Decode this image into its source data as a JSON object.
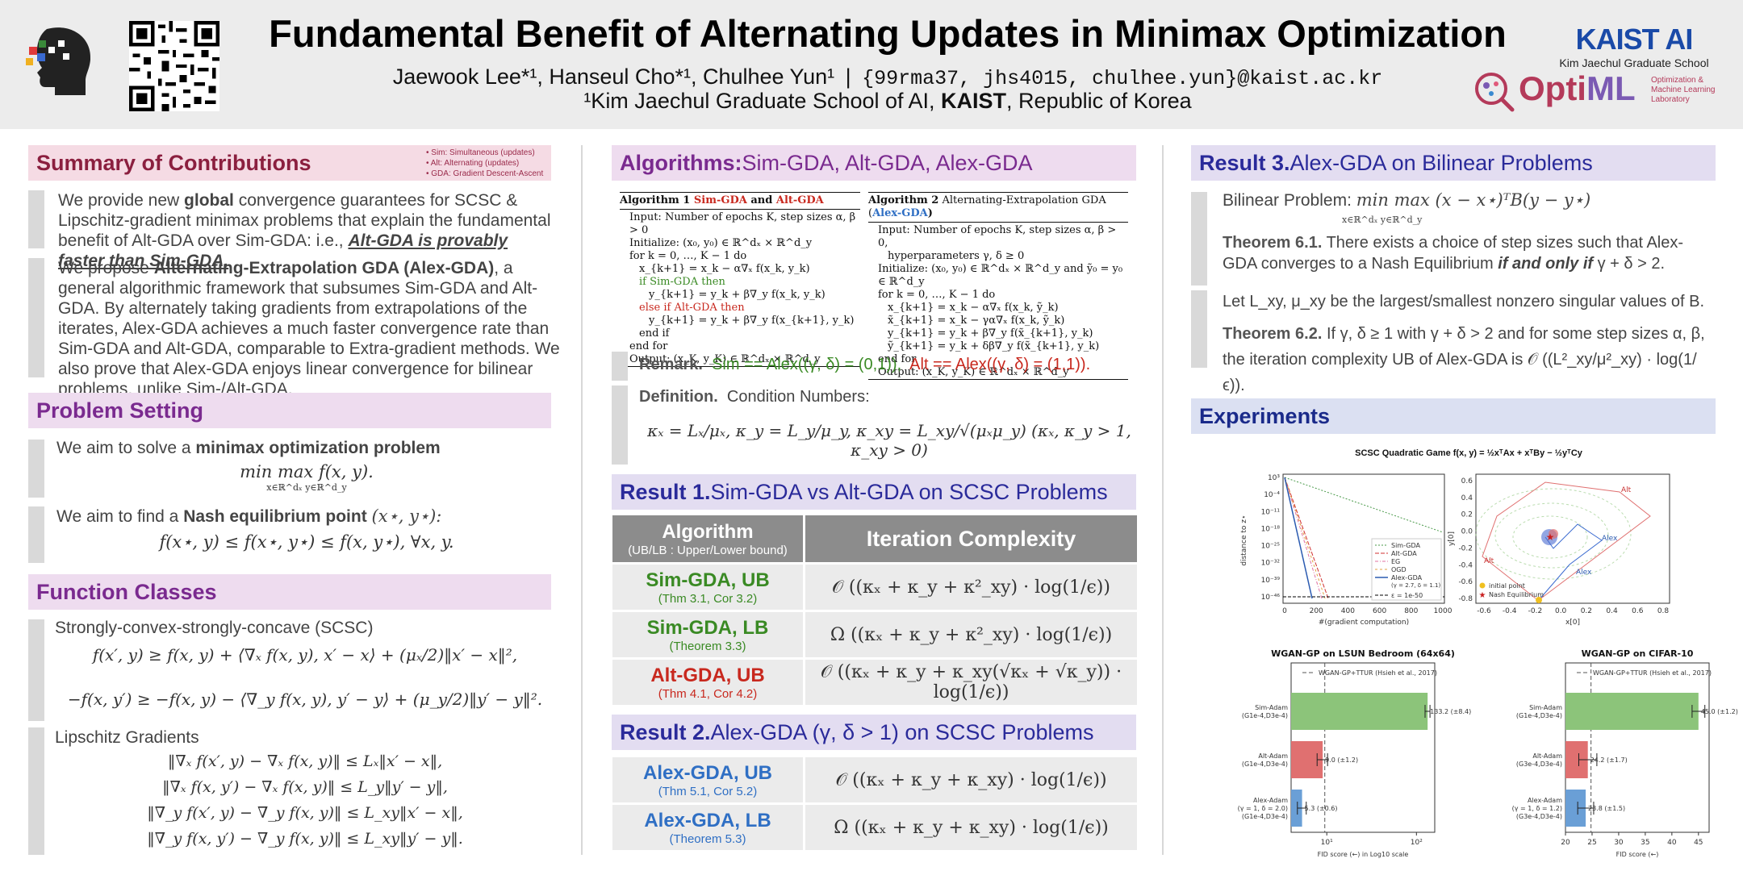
{
  "header": {
    "title": "Fundamental Benefit of Alternating Updates in Minimax Optimization",
    "authors": "Jaewook Lee*¹, Hanseul Cho*¹, Chulhee Yun¹",
    "sep": "|",
    "emails": "{99rma37, jhs4015, chulhee.yun}@kaist.ac.kr",
    "affil_pre": "¹Kim Jaechul Graduate School of AI, ",
    "affil_bold": "KAIST",
    "affil_post": ", Republic of Korea",
    "kaist_logo": "KAIST AI",
    "kaist_sub": "Kim Jaechul Graduate School",
    "optiml_a": "Opti",
    "optiml_b": "ML",
    "optiml_sub1": "Optimization &",
    "optiml_sub2": "Machine Learning",
    "optiml_sub3": "Laboratory"
  },
  "colors": {
    "summary": "#f5dbe4",
    "problem": "#eedcef",
    "algo": "#eedcef",
    "result": "#e3ddf1",
    "accent_red": "#8b1f3f",
    "accent_purple": "#7a2a8f",
    "accent_blue": "#2a2a9a"
  },
  "summary": {
    "title": "Summary of Contributions",
    "legend": [
      "• Sim: Simultaneous (updates)",
      "• Alt: Alternating (updates)",
      "• GDA: Gradient Descent-Ascent"
    ],
    "p1_a": "We provide new ",
    "p1_b": "global",
    "p1_c": " convergence guarantees for SCSC & Lipschitz-gradient minimax problems that explain the fundamental benefit of Alt-GDA over Sim-GDA: i.e., ",
    "p1_d": "Alt-GDA is provably faster than Sim-GDA.",
    "p2_a": "We propose ",
    "p2_b": "Alternating-Extrapolation GDA (Alex-GDA)",
    "p2_c": ", a general algorithmic framework that subsumes Sim-GDA and Alt-GDA. By alternately taking gradients from extrapolations of the iterates, Alex-GDA achieves a much faster convergence rate than Sim-GDA and Alt-GDA, comparable to Extra-gradient methods. We also prove that Alex-GDA enjoys linear convergence for bilinear problems, unlike Sim-/Alt-GDA."
  },
  "problem": {
    "title": "Problem Setting",
    "l1_a": "We aim to solve a ",
    "l1_b": "minimax optimization problem",
    "m1": "min max f(x, y).",
    "m1_sub": "x∈ℝ^dₓ y∈ℝ^d_y",
    "l2_a": "We aim to find a ",
    "l2_b": "Nash equilibrium point",
    " l2_c": "",
    "l2_pt": "(x⋆, y⋆):",
    "m2": "f(x⋆, y) ≤ f(x⋆, y⋆) ≤ f(x, y⋆),   ∀x, y."
  },
  "functions": {
    "title": "Function Classes",
    "scsc": "Strongly-convex-strongly-concave (SCSC)",
    "scsc_m1": "f(x′, y) ≥ f(x, y) + ⟨∇ₓ f(x, y), x′ − x⟩ + (μₓ/2)‖x′ − x‖²,",
    "scsc_m2": "−f(x, y′) ≥ −f(x, y) − ⟨∇_y f(x, y), y′ − y⟩ + (μ_y/2)‖y′ − y‖².",
    "lip": "Lipschitz Gradients",
    "lip_m": [
      "‖∇ₓ f(x′, y) − ∇ₓ f(x, y)‖ ≤ Lₓ‖x′ − x‖,",
      "‖∇ₓ f(x, y′) − ∇ₓ f(x, y)‖ ≤ L_y‖y′ − y‖,",
      "‖∇_y f(x′, y) − ∇_y f(x, y)‖ ≤ L_xy‖x′ − x‖,",
      "‖∇_y f(x, y′) − ∇_y f(x, y)‖ ≤ L_xy‖y′ − y‖."
    ]
  },
  "algorithms": {
    "title_b": "Algorithms:",
    "title_r": " Sim-GDA, Alt-GDA, Alex-GDA",
    "a1_head": "Algorithm 1",
    "a1_sim": "Sim-GDA",
    "a1_and": " and ",
    "a1_alt": "Alt-GDA",
    "a1_lines": [
      "Input: Number of epochs K, step sizes α, β > 0",
      "Initialize: (x₀, y₀) ∈ ℝ^dₓ × ℝ^d_y",
      "for k = 0, …, K − 1 do",
      "x_{k+1} = x_k − α∇ₓ f(x_k, y_k)",
      "if Sim-GDA then",
      "y_{k+1} = y_k + β∇_y f(x_k, y_k)",
      "else if Alt-GDA then",
      "y_{k+1} = y_k + β∇_y f(x_{k+1}, y_k)",
      "end if",
      "end for",
      "Output: (x_K, y_K) ∈ ℝ^dₓ × ℝ^d_y"
    ],
    "a2_head": "Algorithm 2",
    "a2_name": " Alternating-Extrapolation GDA (",
    "a2_alex": "Alex-GDA",
    "a2_close": ")",
    "a2_lines": [
      "Input: Number of epochs K, step sizes α, β > 0,",
      "hyperparameters γ, δ ≥ 0",
      "Initialize: (x₀, y₀) ∈ ℝ^dₓ × ℝ^d_y and ỹ₀ = y₀ ∈ ℝ^d_y",
      "for k = 0, …, K − 1 do",
      "x_{k+1} = x_k − α∇ₓ f(x_k, ỹ_k)",
      "x̃_{k+1} = x_k − γα∇ₓ f(x_k, ỹ_k)",
      "y_{k+1} = y_k + β∇_y f(x̃_{k+1}, y_k)",
      "ỹ_{k+1} = y_k + δβ∇_y f(x̃_{k+1}, y_k)",
      "end for",
      "Output: (x_K, y_K) ∈ ℝ^dₓ × ℝ^d_y"
    ],
    "remark_label": "Remark.",
    "remark_sim": "Sim == Alex((γ, δ) = (0,1)),",
    "remark_alt": "Alt == Alex((γ, δ) = (1,1)).",
    "def_label": "Definition.",
    "def_text": "Condition Numbers:",
    "def_math": "κₓ = Lₓ/μₓ,  κ_y = L_y/μ_y,  κ_xy = L_xy/√(μₓμ_y)     (κₓ, κ_y > 1, κ_xy > 0)"
  },
  "result1": {
    "title_b": "Result 1.",
    "title_r": " Sim-GDA vs Alt-GDA on SCSC Problems",
    "col1": "Algorithm",
    "col1_sub": "(UB/LB : Upper/Lower bound)",
    "col2": "Iteration Complexity",
    "rows": [
      {
        "name": "Sim-GDA, UB",
        "sub": "(Thm 3.1, Cor 3.2)",
        "cx": "𝒪 ((κₓ + κ_y + κ²_xy) · log(1/ϵ))"
      },
      {
        "name": "Sim-GDA, LB",
        "sub": "(Theorem 3.3)",
        "cx": "Ω ((κₓ + κ_y + κ²_xy) · log(1/ϵ))"
      },
      {
        "name": "Alt-GDA, UB",
        "sub": "(Thm 4.1, Cor 4.2)",
        "cx": "𝒪 ((κₓ + κ_y + κ_xy(√κₓ + √κ_y)) · log(1/ϵ))"
      }
    ]
  },
  "result2": {
    "title_b": "Result 2.",
    "title_r": " Alex-GDA (γ, δ > 1) on SCSC Problems",
    "rows": [
      {
        "name": "Alex-GDA, UB",
        "sub": "(Thm 5.1, Cor 5.2)",
        "cx": "𝒪 ((κₓ + κ_y + κ_xy) · log(1/ϵ))"
      },
      {
        "name": "Alex-GDA, LB",
        "sub": "(Theorem 5.3)",
        "cx": "Ω ((κₓ + κ_y + κ_xy) · log(1/ϵ))"
      }
    ]
  },
  "result3": {
    "title_b": "Result 3.",
    "title_r": " Alex-GDA on Bilinear Problems",
    "bil_label": "Bilinear Problem: ",
    "bil_math": "min max (x − x⋆)ᵀB(y − y⋆)",
    "bil_sub": "x∈ℝ^dₓ y∈ℝ^d_y",
    "t61_label": "Theorem 6.1.",
    "t61_a": " There exists a choice of step sizes such that Alex-GDA converges to a Nash Equilibrium ",
    "t61_b": "if and only if",
    "t61_c": " γ + δ > 2.",
    "let": "Let L_xy, μ_xy be the largest/smallest nonzero singular values of B.",
    "t62_label": "Theorem 6.2.",
    "t62_a": " If γ, δ ≥ 1 with γ + δ > 2 and for some step sizes α, β,",
    "t62_b": "the iteration complexity UB of Alex-GDA is 𝒪 ((L²_xy/μ²_xy) · log(1/ϵ))."
  },
  "experiments": {
    "title": "Experiments",
    "scsc_title": "SCSC Quadratic Game f(x, y) = ½xᵀAx + xᵀBy − ½yᵀCy",
    "left_ylabel": "distance to z⋆",
    "left_xlabel": "#(gradient computation)",
    "left_yticks": [
      "10³",
      "10⁻⁴",
      "10⁻¹¹",
      "10⁻¹⁸",
      "10⁻²⁵",
      "10⁻³²",
      "10⁻³⁹",
      "10⁻⁴⁶"
    ],
    "left_xticks": [
      "0",
      "200",
      "400",
      "600",
      "800",
      "1000"
    ],
    "left_legend": [
      "Sim-GDA",
      "Alt-GDA",
      "EG",
      "OGD",
      "Alex-GDA",
      "(γ = 2.7, δ = 1.1)",
      "ε = 1e-50"
    ],
    "right_ylabel": "y[0]",
    "right_xlabel": "x[0]",
    "right_yticks": [
      "0.6",
      "0.4",
      "0.2",
      "0.0",
      "-0.2",
      "-0.4",
      "-0.6",
      "-0.8"
    ],
    "right_xticks": [
      "-0.6",
      "-0.4",
      "-0.2",
      "0.0",
      "0.2",
      "0.4",
      "0.6",
      "0.8"
    ],
    "right_legend": [
      "initial point",
      "Nash Equilibrium"
    ],
    "alt_label": "Alt",
    "alex_label": "Alex"
  },
  "chart_data": [
    {
      "type": "bar",
      "orientation": "horizontal",
      "title": "WGAN-GP on LSUN Bedroom (64x64)",
      "xlabel": "FID score (←) in Log10 scale",
      "xscale": "log",
      "xticks": [
        "10¹",
        "10²"
      ],
      "categories": [
        [
          "Sim-Adam",
          "(G1e-4,D3e-4)"
        ],
        [
          "Alt-Adam",
          "(G1e-4,D3e-4)"
        ],
        [
          "Alex-Adam",
          "(γ = 1, δ = 2.0)",
          "(G1e-4,D3e-4)"
        ]
      ],
      "values": [
        133.2,
        9.0,
        5.3
      ],
      "errors": [
        8.4,
        1.2,
        0.6
      ],
      "labels": [
        "133.2 (±8.4)",
        "9.0 (±1.2)",
        "5.3 (±0.6)"
      ],
      "colors": [
        "#8cc47a",
        "#e07070",
        "#6a9fd6"
      ],
      "reference": {
        "label": "WGAN-GP+TTUR (Hsieh et al., 2017)",
        "value": 9.5
      }
    },
    {
      "type": "bar",
      "orientation": "horizontal",
      "title": "WGAN-GP on CIFAR-10",
      "xlabel": "FID score (←)",
      "xlim": [
        20,
        47
      ],
      "xticks": [
        "20",
        "25",
        "30",
        "35",
        "40",
        "45"
      ],
      "categories": [
        [
          "Sim-Adam",
          "(G1e-4,D3e-4)"
        ],
        [
          "Alt-Adam",
          "(G3e-4,D3e-4)"
        ],
        [
          "Alex-Adam",
          "(γ = 1, δ = 1.2)",
          "(G3e-4,D3e-4)"
        ]
      ],
      "values": [
        45.0,
        24.2,
        23.8
      ],
      "errors": [
        1.2,
        1.7,
        1.5
      ],
      "labels": [
        "45.0 (±1.2)",
        "24.2 (±1.7)",
        "23.8 (±1.5)"
      ],
      "colors": [
        "#8cc47a",
        "#e07070",
        "#6a9fd6"
      ],
      "reference": {
        "label": "WGAN-GP+TTUR (Hsieh et al., 2017)",
        "value": 24.8
      }
    }
  ]
}
